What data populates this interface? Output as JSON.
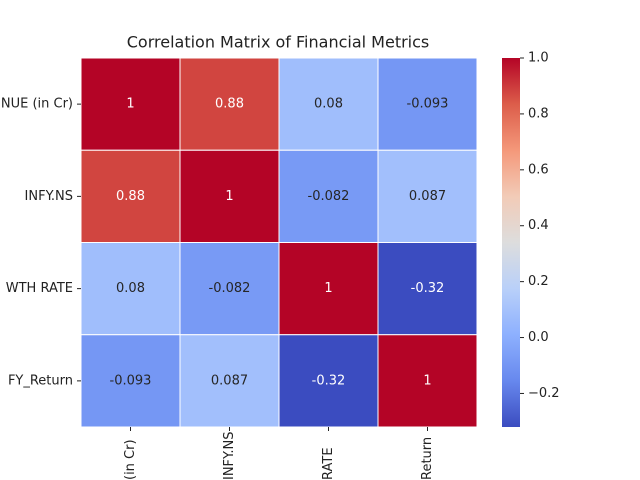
{
  "chart_data": {
    "type": "heatmap",
    "title": "Correlation Matrix of Financial Metrics",
    "x_categories": [
      "(in Cr)",
      "INFY.NS",
      "RATE",
      "Return"
    ],
    "y_categories": [
      "NUE (in Cr)",
      "INFY.NS",
      "WTH RATE",
      "FY_Return"
    ],
    "z": [
      [
        1,
        0.88,
        0.08,
        -0.093
      ],
      [
        0.88,
        1,
        -0.082,
        0.087
      ],
      [
        0.08,
        -0.082,
        1,
        -0.32
      ],
      [
        -0.093,
        0.087,
        -0.32,
        1
      ]
    ],
    "colormap": "coolwarm",
    "clim": [
      -0.32,
      1
    ],
    "cticks": [
      {
        "value": -0.2,
        "label": "−0.2"
      },
      {
        "value": 0,
        "label": "0.0"
      },
      0.2,
      0.4,
      0.6,
      0.8,
      {
        "value": 1,
        "label": "1.0"
      }
    ]
  }
}
